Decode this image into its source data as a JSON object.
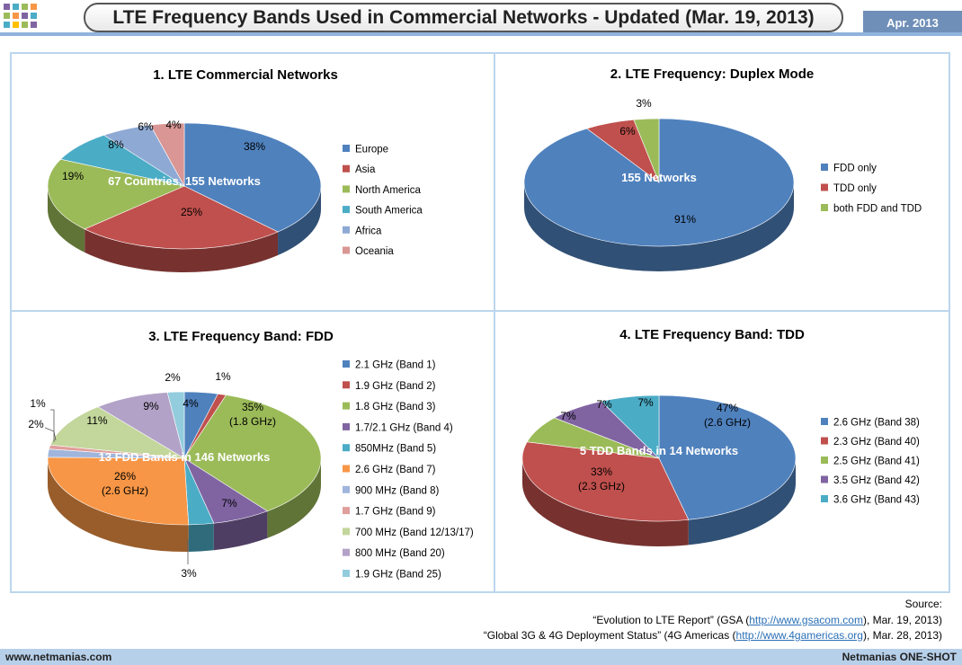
{
  "header": {
    "title": "LTE Frequency Bands Used in Commercial Networks - Updated (Mar. 19, 2013)",
    "date": "Apr. 2013"
  },
  "chart_data": [
    {
      "type": "pie",
      "title": "1. LTE Commercial Networks",
      "center_label": "67 Countries, 155 Networks",
      "categories": [
        "Europe",
        "Asia",
        "North America",
        "South America",
        "Africa",
        "Oceania"
      ],
      "values": [
        38,
        25,
        19,
        8,
        6,
        4
      ],
      "labels": [
        "38%",
        "25%",
        "19%",
        "8%",
        "6%",
        "4%"
      ],
      "colors": [
        "#4f81bd",
        "#c0504d",
        "#9bbb59",
        "#4bacc6",
        "#8ea9d4",
        "#d99694"
      ],
      "legend": "right"
    },
    {
      "type": "pie",
      "title": "2. LTE Frequency: Duplex Mode",
      "center_label": "155 Networks",
      "categories": [
        "FDD only",
        "TDD only",
        "both FDD and TDD"
      ],
      "values": [
        91,
        6,
        3
      ],
      "labels": [
        "91%",
        "6%",
        "3%"
      ],
      "colors": [
        "#4f81bd",
        "#c0504d",
        "#9bbb59"
      ],
      "legend": "right"
    },
    {
      "type": "pie",
      "title": "3. LTE Frequency Band: FDD",
      "center_label": "13 FDD Bands in 146 Networks",
      "categories": [
        "2.1 GHz (Band 1)",
        "1.9 GHz (Band 2)",
        "1.8 GHz (Band 3)",
        "1.7/2.1 GHz (Band 4)",
        "850MHz (Band 5)",
        "2.6 GHz (Band 7)",
        "900 MHz (Band 8)",
        "1.7 GHz (Band 9)",
        "700 MHz (Band 12/13/17)",
        "800 MHz (Band 20)",
        "1.9 GHz (Band 25)"
      ],
      "values": [
        4,
        1,
        35,
        7,
        3,
        26,
        2,
        1,
        11,
        9,
        2
      ],
      "labels": [
        "4%",
        "1%",
        "35%\n(1.8 GHz)",
        "7%",
        "3%",
        "26%\n(2.6 GHz)",
        "2%",
        "1%",
        "11%",
        "9%",
        "2%"
      ],
      "colors": [
        "#4f81bd",
        "#c0504d",
        "#9bbb59",
        "#8064a2",
        "#4bacc6",
        "#f79646",
        "#9fb5dc",
        "#e09e9c",
        "#c3d69b",
        "#b3a2c7",
        "#93cddd"
      ],
      "legend": "right"
    },
    {
      "type": "pie",
      "title": "4. LTE Frequency Band: TDD",
      "center_label": "5 TDD Bands in 14 Networks",
      "categories": [
        "2.6 GHz (Band 38)",
        "2.3 GHz (Band 40)",
        "2.5 GHz (Band 41)",
        "3.5 GHz (Band 42)",
        "3.6 GHz (Band 43)"
      ],
      "values": [
        47,
        33,
        7,
        7,
        7
      ],
      "labels": [
        "47%\n(2.6 GHz)",
        "33%\n(2.3 GHz)",
        "7%",
        "7%",
        "7%"
      ],
      "colors": [
        "#4f81bd",
        "#c0504d",
        "#9bbb59",
        "#8064a2",
        "#4bacc6"
      ],
      "legend": "right"
    }
  ],
  "source": {
    "heading": "Source:",
    "line1_pre": "“Evolution to LTE Report” (GSA (",
    "line1_link": "http://www.gsacom.com",
    "line1_post": "), Mar. 19, 2013)",
    "line2_pre": "“Global 3G & 4G Deployment Status” (4G Americas (",
    "line2_link": "http://www.4gamericas.org",
    "line2_post": "), Mar. 28, 2013)"
  },
  "footer": {
    "left": "www.netmanias.com",
    "right": "Netmanias ONE-SHOT"
  }
}
